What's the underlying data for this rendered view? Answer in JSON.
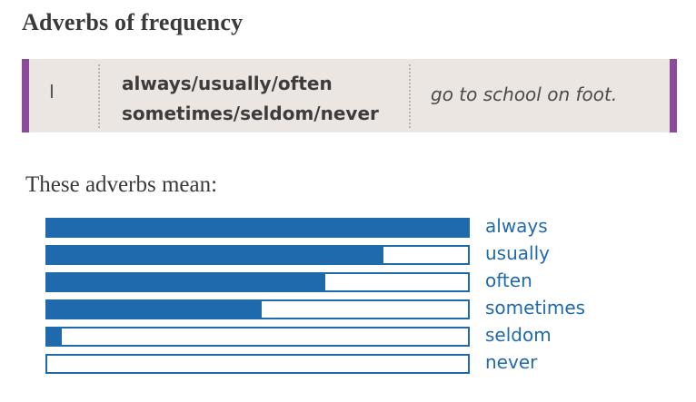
{
  "title": "Adverbs of frequency",
  "grammar_box": {
    "subject": "I",
    "adverbs_line1": "always/usually/often",
    "adverbs_line2": "sometimes/seldom/never",
    "phrase": "go to school on foot."
  },
  "intro": "These adverbs mean:",
  "colors": {
    "accent_purple": "#8b4a9a",
    "box_background": "#ece6e2",
    "scale_blue": "#1f6aad"
  },
  "scale": [
    {
      "label": "always",
      "fill": 1.0
    },
    {
      "label": "usually",
      "fill": 0.8
    },
    {
      "label": "often",
      "fill": 0.66
    },
    {
      "label": "sometimes",
      "fill": 0.51
    },
    {
      "label": "seldom",
      "fill": 0.035
    },
    {
      "label": "never",
      "fill": 0.0
    }
  ]
}
